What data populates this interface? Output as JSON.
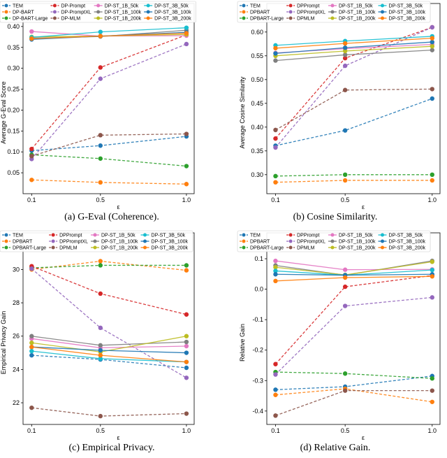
{
  "chart_data": [
    {
      "type": "line",
      "caption": "(a) G-Eval (Coherence).",
      "xlabel": "ε",
      "ylabel": "Average G-Eval Score",
      "x": [
        0.1,
        0.5,
        1.0
      ],
      "xticks": [
        "0.1",
        "0.5",
        "1.0"
      ],
      "ylim": [
        0.0,
        0.455
      ],
      "yticks": [
        0.05,
        0.1,
        0.15,
        0.2,
        0.25,
        0.3,
        0.35,
        0.4
      ],
      "ytick_decimals": 2,
      "grid": false,
      "legend": "top",
      "series": [
        {
          "name": "TEM",
          "color": "#1f77b4",
          "dashed": true,
          "values": [
            0.103,
            0.115,
            0.137
          ]
        },
        {
          "name": "DP-BART",
          "color": "#ff7f0e",
          "dashed": true,
          "values": [
            0.033,
            0.027,
            0.023
          ]
        },
        {
          "name": "DP-BART-Large",
          "color": "#2ca02c",
          "dashed": true,
          "values": [
            0.093,
            0.084,
            0.066
          ]
        },
        {
          "name": "DP-Prompt",
          "color": "#d62728",
          "dashed": true,
          "values": [
            0.107,
            0.302,
            0.38
          ]
        },
        {
          "name": "DP-PromptXL",
          "color": "#9467bd",
          "dashed": true,
          "values": [
            0.083,
            0.275,
            0.358
          ]
        },
        {
          "name": "DP-MLM",
          "color": "#8c564b",
          "dashed": true,
          "values": [
            0.09,
            0.14,
            0.143
          ]
        },
        {
          "name": "DP-ST_1B_50k",
          "color": "#e377c2",
          "dashed": false,
          "values": [
            0.388,
            0.377,
            0.378
          ]
        },
        {
          "name": "DP-ST_1B_100k",
          "color": "#7f7f7f",
          "dashed": false,
          "values": [
            0.372,
            0.376,
            0.391
          ]
        },
        {
          "name": "DP-ST_1B_200k",
          "color": "#bcbd22",
          "dashed": false,
          "values": [
            0.375,
            0.377,
            0.381
          ]
        },
        {
          "name": "DP-ST_3B_50k",
          "color": "#17becf",
          "dashed": false,
          "values": [
            0.374,
            0.387,
            0.397
          ]
        },
        {
          "name": "DP-ST_3B_100k",
          "color": "#1f77b4",
          "dashed": false,
          "values": [
            0.369,
            0.377,
            0.386
          ]
        },
        {
          "name": "DP-ST_3B_200k",
          "color": "#ff7f0e",
          "dashed": false,
          "values": [
            0.371,
            0.377,
            0.384
          ]
        }
      ]
    },
    {
      "type": "line",
      "caption": "(b) Cosine Similarity.",
      "xlabel": "ε",
      "ylabel": "Average Cosine Similarity",
      "x": [
        0.1,
        0.5,
        1.0
      ],
      "xticks": [
        "0.1",
        "0.5",
        "1.0"
      ],
      "ylim": [
        0.26,
        0.66
      ],
      "yticks": [
        0.3,
        0.35,
        0.4,
        0.45,
        0.5,
        0.55,
        0.6
      ],
      "ytick_decimals": 2,
      "grid": false,
      "legend": "top",
      "series": [
        {
          "name": "TEM",
          "color": "#1f77b4",
          "dashed": true,
          "values": [
            0.361,
            0.393,
            0.46
          ]
        },
        {
          "name": "DPBART",
          "color": "#ff7f0e",
          "dashed": true,
          "values": [
            0.284,
            0.288,
            0.288
          ]
        },
        {
          "name": "DPBART-Large",
          "color": "#2ca02c",
          "dashed": true,
          "values": [
            0.297,
            0.3,
            0.3
          ]
        },
        {
          "name": "DPPrompt",
          "color": "#d62728",
          "dashed": true,
          "values": [
            0.376,
            0.545,
            0.61
          ]
        },
        {
          "name": "DPPromptXL",
          "color": "#9467bd",
          "dashed": true,
          "values": [
            0.357,
            0.529,
            0.61
          ]
        },
        {
          "name": "DPMLM",
          "color": "#8c564b",
          "dashed": true,
          "values": [
            0.394,
            0.478,
            0.48
          ]
        },
        {
          "name": "DP-ST_1B_50k",
          "color": "#e377c2",
          "dashed": false,
          "values": [
            0.556,
            0.565,
            0.574
          ]
        },
        {
          "name": "DP-ST_1B_100k",
          "color": "#7f7f7f",
          "dashed": false,
          "values": [
            0.54,
            0.552,
            0.562
          ]
        },
        {
          "name": "DP-ST_1B_200k",
          "color": "#bcbd22",
          "dashed": false,
          "values": [
            0.55,
            0.56,
            0.57
          ]
        },
        {
          "name": "DP-ST_3B_50k",
          "color": "#17becf",
          "dashed": false,
          "values": [
            0.572,
            0.581,
            0.591
          ]
        },
        {
          "name": "DP-ST_3B_100k",
          "color": "#1f77b4",
          "dashed": false,
          "values": [
            0.555,
            0.567,
            0.579
          ]
        },
        {
          "name": "DP-ST_3B_200k",
          "color": "#ff7f0e",
          "dashed": false,
          "values": [
            0.566,
            0.576,
            0.587
          ]
        }
      ]
    },
    {
      "type": "line",
      "caption": "(c) Empirical Privacy.",
      "xlabel": "ε",
      "ylabel": "Empirical Privacy Gain",
      "x": [
        0.1,
        0.5,
        1.0
      ],
      "xticks": [
        "0.1",
        "0.5",
        "1.0"
      ],
      "ylim": [
        20.7,
        32.2
      ],
      "yticks": [
        22,
        24,
        26,
        28,
        30
      ],
      "ytick_decimals": 0,
      "grid": false,
      "legend": "top",
      "series": [
        {
          "name": "TEM",
          "color": "#1f77b4",
          "dashed": true,
          "values": [
            24.85,
            24.6,
            24.1
          ]
        },
        {
          "name": "DPBART",
          "color": "#ff7f0e",
          "dashed": true,
          "values": [
            30.0,
            30.5,
            29.95
          ]
        },
        {
          "name": "DPBART-Large",
          "color": "#2ca02c",
          "dashed": true,
          "values": [
            30.1,
            30.25,
            30.25
          ]
        },
        {
          "name": "DPPrompt",
          "color": "#d62728",
          "dashed": true,
          "values": [
            30.2,
            28.55,
            27.3
          ]
        },
        {
          "name": "DPPromptXL",
          "color": "#9467bd",
          "dashed": true,
          "values": [
            30.05,
            26.5,
            23.5
          ]
        },
        {
          "name": "DPMLM",
          "color": "#8c564b",
          "dashed": true,
          "values": [
            21.7,
            21.2,
            21.35
          ]
        },
        {
          "name": "DP-ST_1B_50k",
          "color": "#e377c2",
          "dashed": false,
          "values": [
            25.85,
            25.3,
            25.4
          ]
        },
        {
          "name": "DP-ST_1B_100k",
          "color": "#7f7f7f",
          "dashed": false,
          "values": [
            26.0,
            25.45,
            25.65
          ]
        },
        {
          "name": "DP-ST_1B_200k",
          "color": "#bcbd22",
          "dashed": false,
          "values": [
            25.6,
            25.05,
            26.0
          ]
        },
        {
          "name": "DP-ST_3B_50k",
          "color": "#17becf",
          "dashed": false,
          "values": [
            25.1,
            24.65,
            24.45
          ]
        },
        {
          "name": "DP-ST_3B_100k",
          "color": "#1f77b4",
          "dashed": false,
          "values": [
            25.35,
            25.15,
            25.0
          ]
        },
        {
          "name": "DP-ST_3B_200k",
          "color": "#ff7f0e",
          "dashed": false,
          "values": [
            25.35,
            24.85,
            24.45
          ]
        }
      ]
    },
    {
      "type": "line",
      "caption": "(d) Relative Gain.",
      "xlabel": "ε",
      "ylabel": "Relative Gain",
      "x": [
        0.1,
        0.5,
        1.0
      ],
      "xticks": [
        "0.1",
        "0.5",
        "1.0"
      ],
      "ylim": [
        -0.444,
        0.185
      ],
      "yticks": [
        -0.4,
        -0.3,
        -0.2,
        -0.1,
        0.0,
        0.1
      ],
      "ytick_decimals": 1,
      "grid": false,
      "legend": "top",
      "series": [
        {
          "name": "TEM",
          "color": "#1f77b4",
          "dashed": true,
          "values": [
            -0.33,
            -0.32,
            -0.285
          ]
        },
        {
          "name": "DPBART",
          "color": "#ff7f0e",
          "dashed": true,
          "values": [
            -0.347,
            -0.327,
            -0.37
          ]
        },
        {
          "name": "DPBART-Large",
          "color": "#2ca02c",
          "dashed": true,
          "values": [
            -0.272,
            -0.277,
            -0.293
          ]
        },
        {
          "name": "DPPrompt",
          "color": "#d62728",
          "dashed": true,
          "values": [
            -0.246,
            0.008,
            0.045
          ]
        },
        {
          "name": "DPPromptXL",
          "color": "#9467bd",
          "dashed": true,
          "values": [
            -0.28,
            -0.055,
            -0.027
          ]
        },
        {
          "name": "DPMLM",
          "color": "#8c564b",
          "dashed": true,
          "values": [
            -0.415,
            -0.333,
            -0.333
          ]
        },
        {
          "name": "DP-ST_1B_50k",
          "color": "#e377c2",
          "dashed": false,
          "values": [
            0.093,
            0.064,
            0.065
          ]
        },
        {
          "name": "DP-ST_1B_100k",
          "color": "#7f7f7f",
          "dashed": false,
          "values": [
            0.078,
            0.046,
            0.093
          ]
        },
        {
          "name": "DP-ST_1B_200k",
          "color": "#bcbd22",
          "dashed": false,
          "values": [
            0.072,
            0.047,
            0.09
          ]
        },
        {
          "name": "DP-ST_3B_50k",
          "color": "#17becf",
          "dashed": false,
          "values": [
            0.06,
            0.046,
            0.063
          ]
        },
        {
          "name": "DP-ST_3B_100k",
          "color": "#1f77b4",
          "dashed": false,
          "values": [
            0.049,
            0.046,
            0.049
          ]
        },
        {
          "name": "DP-ST_3B_200k",
          "color": "#ff7f0e",
          "dashed": false,
          "values": [
            0.027,
            0.038,
            0.042
          ]
        }
      ]
    }
  ]
}
